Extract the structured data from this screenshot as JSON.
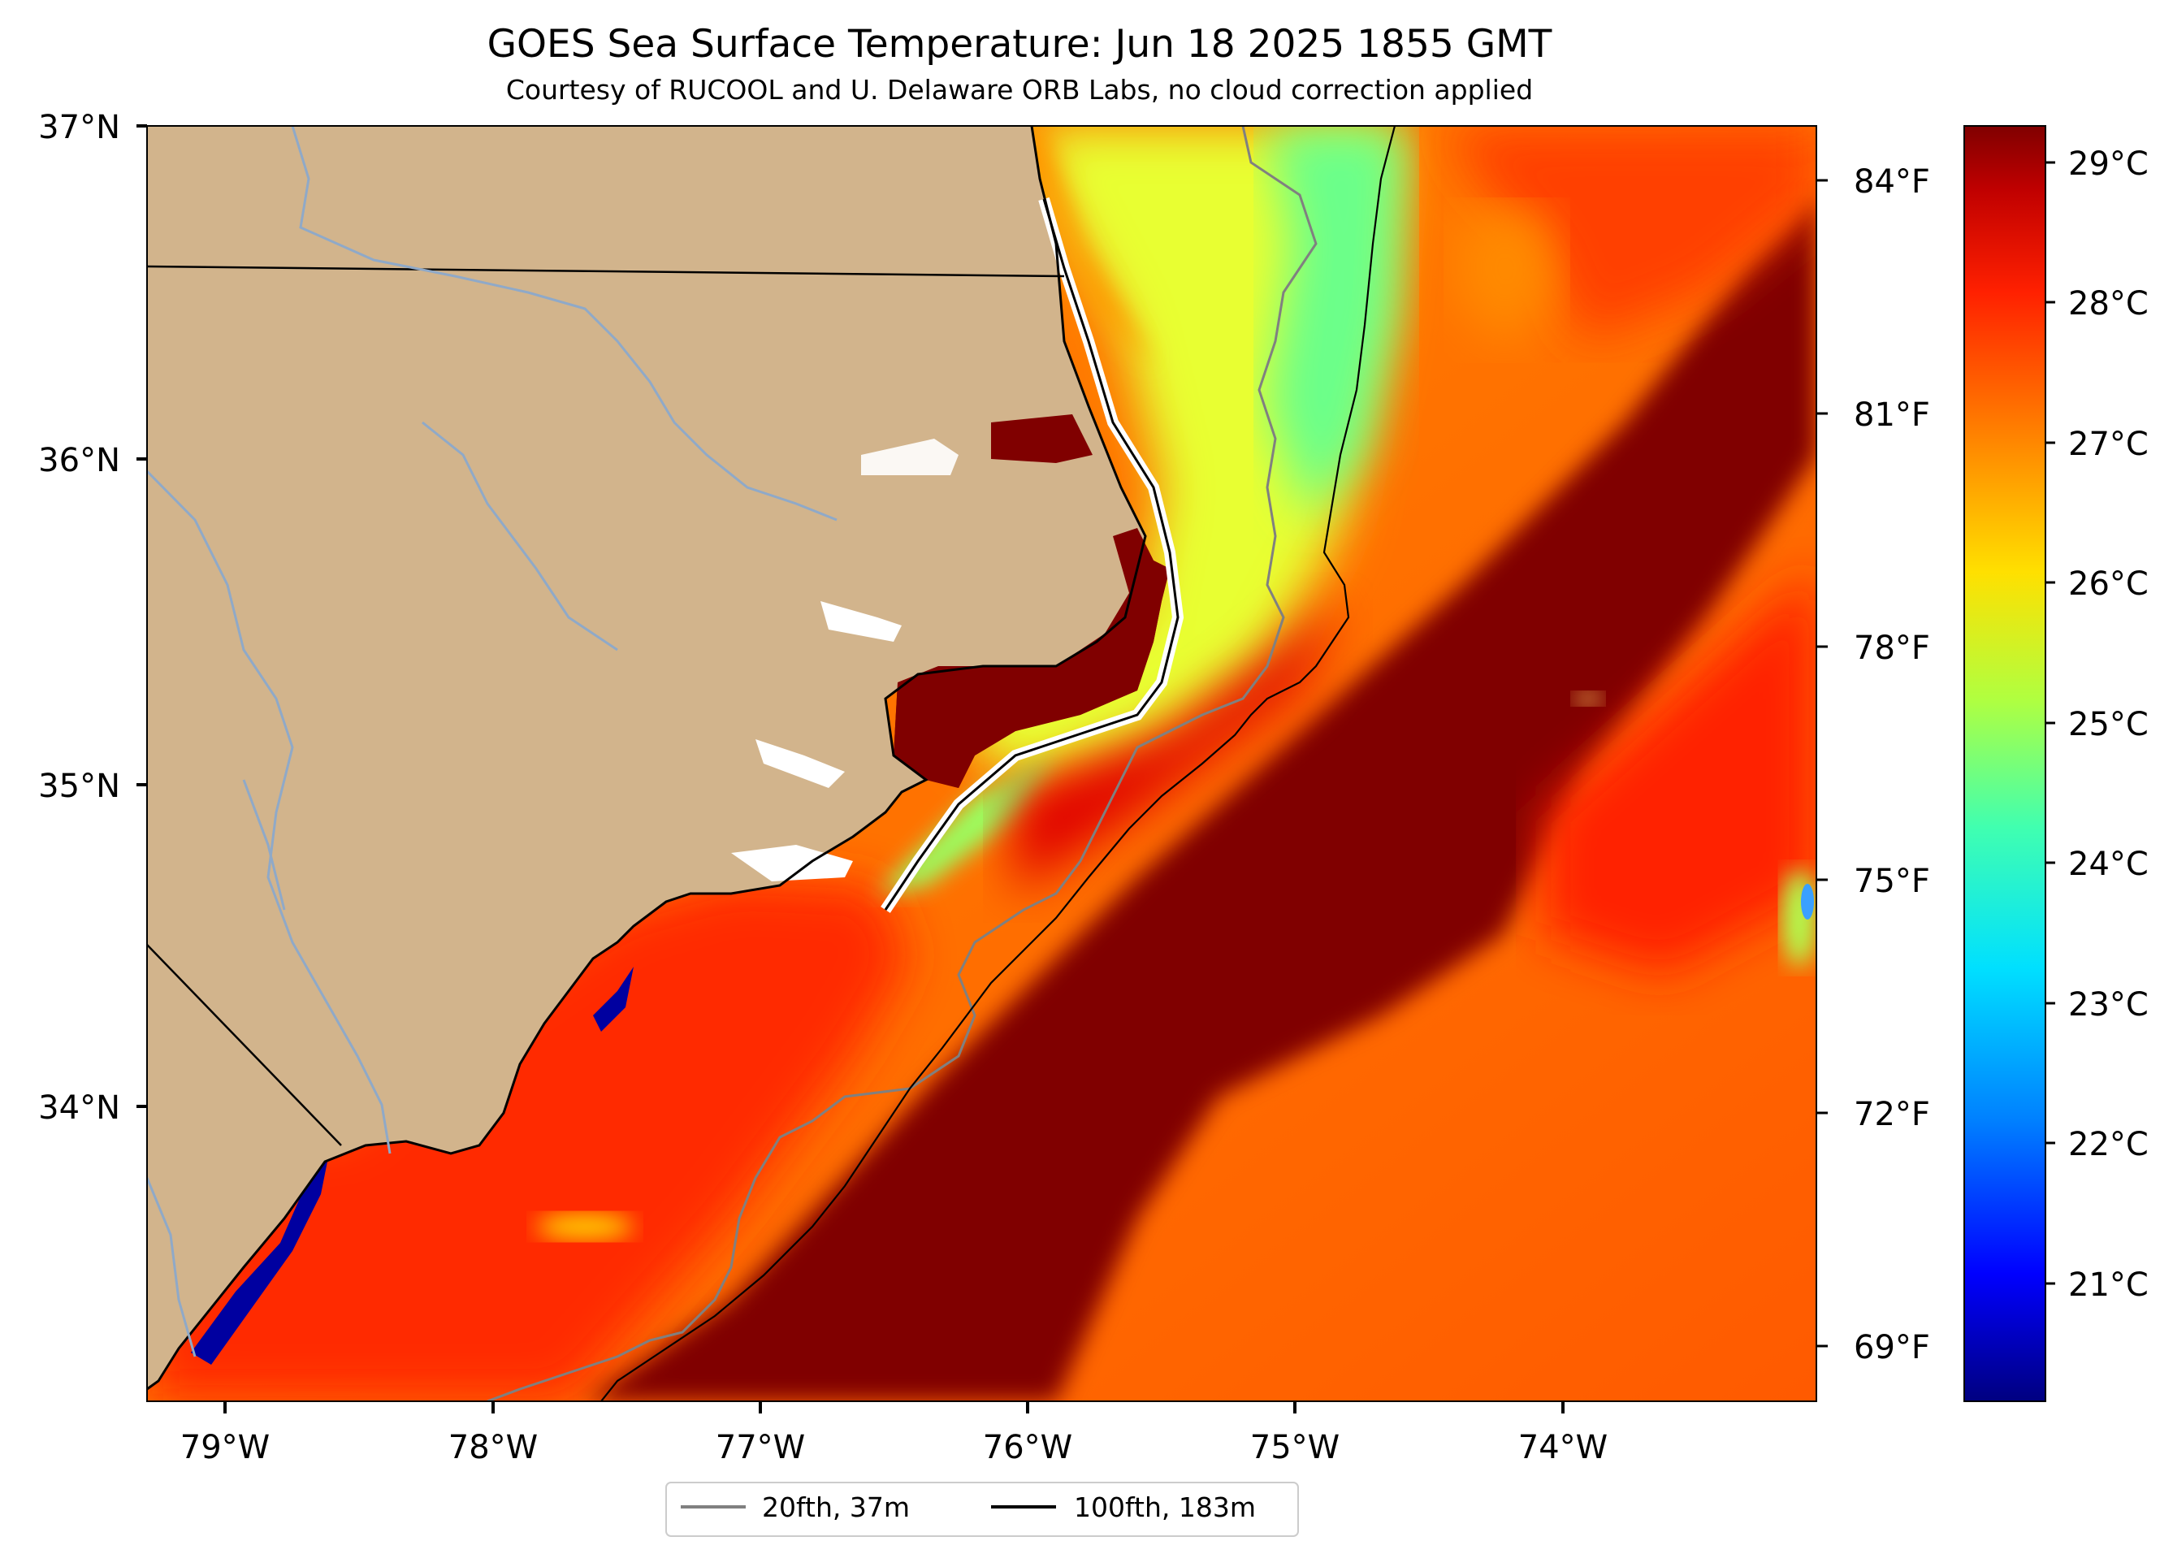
{
  "title": "GOES Sea Surface Temperature: Jun 18 2025 1855 GMT",
  "subtitle": "Courtesy of RUCOOL and U. Delaware ORB Labs, no cloud correction applied",
  "axes": {
    "lat_labels": [
      "37°N",
      "36°N",
      "35°N",
      "34°N"
    ],
    "lon_labels": [
      "79°W",
      "78°W",
      "77°W",
      "76°W",
      "75°W",
      "74°W"
    ],
    "fahrenheit_labels": [
      "84°F",
      "81°F",
      "78°F",
      "75°F",
      "72°F",
      "69°F"
    ]
  },
  "colorbar": {
    "labels": [
      "29°C",
      "28°C",
      "27°C",
      "26°C",
      "25°C",
      "24°C",
      "23°C",
      "22°C",
      "21°C"
    ],
    "colors": [
      "#000080",
      "#0000ff",
      "#0080ff",
      "#00e0ff",
      "#40ffb0",
      "#b0ff40",
      "#ffe000",
      "#ff8000",
      "#ff2000",
      "#c00000",
      "#800000"
    ]
  },
  "legend": {
    "items": [
      {
        "label": "20fth, 37m",
        "color": "#808080"
      },
      {
        "label": "100fth, 183m",
        "color": "#000000"
      }
    ]
  },
  "colors": {
    "land": "#d2b48c",
    "rivers": "#8fa9c8",
    "warm": "#800000",
    "hot": "#d40000",
    "orange": "#ff6a00",
    "yellow": "#e8ff30",
    "green": "#6aff8a"
  }
}
